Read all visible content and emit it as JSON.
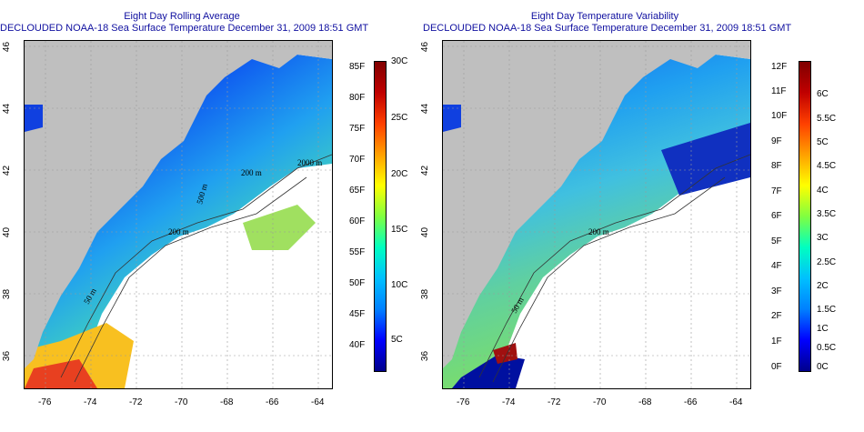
{
  "panels": [
    {
      "title": "Eight Day Rolling Average",
      "subtitle": "DECLOUDED NOAA-18 Sea Surface Temperature December 31, 2009 18:51 GMT",
      "x_ticks": [
        "-76",
        "-74",
        "-72",
        "-70",
        "-68",
        "-66",
        "-64"
      ],
      "y_ticks": [
        "46",
        "44",
        "42",
        "40",
        "38",
        "36"
      ],
      "contour_labels": [
        "50 m",
        "200 m",
        "2000 m",
        "200 m",
        "500 m"
      ],
      "colorbar": {
        "f_labels": [
          "85F",
          "80F",
          "75F",
          "70F",
          "65F",
          "60F",
          "55F",
          "50F",
          "45F",
          "40F"
        ],
        "c_labels": [
          "30C",
          "25C",
          "20C",
          "15C",
          "10C",
          "5C"
        ],
        "colors": [
          "#00008b",
          "#0000ff",
          "#0080ff",
          "#00c0ff",
          "#00ffc0",
          "#80ff40",
          "#ffff00",
          "#ffa000",
          "#ff4000",
          "#c00000",
          "#800000"
        ]
      }
    },
    {
      "title": "Eight Day Temperature Variability",
      "subtitle": "DECLOUDED NOAA-18 Sea Surface Temperature December 31, 2009 18:51 GMT",
      "x_ticks": [
        "-76",
        "-74",
        "-72",
        "-70",
        "-68",
        "-66",
        "-64"
      ],
      "y_ticks": [
        "46",
        "44",
        "42",
        "40",
        "38",
        "36"
      ],
      "contour_labels": [
        "50 m",
        "200 m"
      ],
      "colorbar": {
        "f_labels": [
          "12F",
          "11F",
          "10F",
          "9F",
          "8F",
          "7F",
          "6F",
          "5F",
          "4F",
          "3F",
          "2F",
          "1F",
          "0F"
        ],
        "c_labels": [
          "6C",
          "5.5C",
          "5C",
          "4.5C",
          "4C",
          "3.5C",
          "3C",
          "2.5C",
          "2C",
          "1.5C",
          "1C",
          "0.5C",
          "0C"
        ],
        "colors": [
          "#00008b",
          "#0000ff",
          "#0080ff",
          "#00c0ff",
          "#00ffc0",
          "#80ff40",
          "#ffff00",
          "#ffa000",
          "#ff4000",
          "#c00000",
          "#800000"
        ]
      }
    }
  ]
}
